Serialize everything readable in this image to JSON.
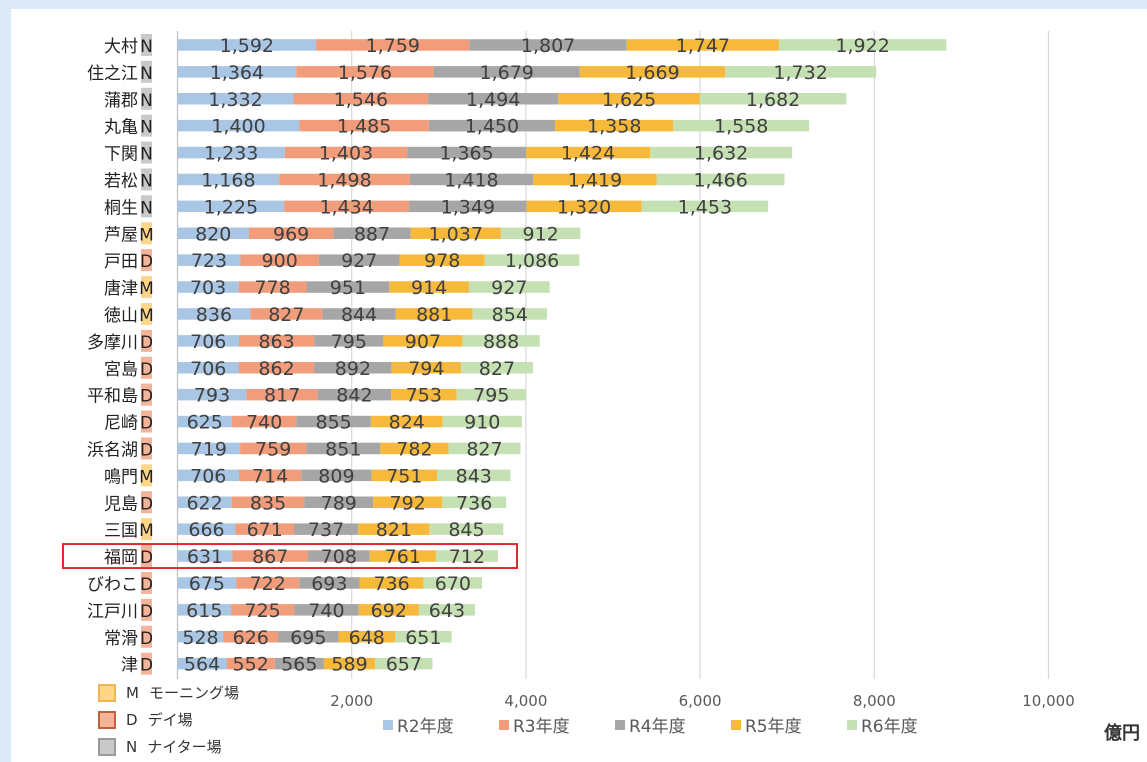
{
  "chart_data": {
    "type": "bar",
    "orientation": "horizontal",
    "stacked": true,
    "unit": "億円",
    "categories": [
      "大村",
      "住之江",
      "蒲郡",
      "丸亀",
      "下関",
      "若松",
      "桐生",
      "芦屋",
      "戸田",
      "唐津",
      "徳山",
      "多摩川",
      "宮島",
      "平和島",
      "尼崎",
      "浜名湖",
      "鳴門",
      "児島",
      "三国",
      "福岡",
      "びわこ",
      "江戸川",
      "常滑",
      "津"
    ],
    "category_types": [
      "N",
      "N",
      "N",
      "N",
      "N",
      "N",
      "N",
      "M",
      "D",
      "M",
      "M",
      "D",
      "D",
      "D",
      "D",
      "D",
      "M",
      "D",
      "M",
      "D",
      "D",
      "D",
      "D",
      "D"
    ],
    "highlighted_category": "福岡",
    "series": [
      {
        "name": "R2年度",
        "color": "#a9c6e5",
        "values": [
          1592,
          1364,
          1332,
          1400,
          1233,
          1168,
          1225,
          820,
          723,
          703,
          836,
          706,
          706,
          793,
          625,
          719,
          706,
          622,
          666,
          631,
          675,
          615,
          528,
          564
        ]
      },
      {
        "name": "R3年度",
        "color": "#f19c7a",
        "values": [
          1759,
          1576,
          1546,
          1485,
          1403,
          1498,
          1434,
          969,
          900,
          778,
          827,
          863,
          862,
          817,
          740,
          759,
          714,
          835,
          671,
          867,
          722,
          725,
          626,
          552
        ]
      },
      {
        "name": "R4年度",
        "color": "#a6a6a6",
        "values": [
          1807,
          1679,
          1494,
          1450,
          1365,
          1418,
          1349,
          887,
          927,
          951,
          844,
          795,
          892,
          842,
          855,
          851,
          809,
          789,
          737,
          708,
          693,
          740,
          695,
          565
        ]
      },
      {
        "name": "R5年度",
        "color": "#f6b93b",
        "values": [
          1747,
          1669,
          1625,
          1358,
          1424,
          1419,
          1320,
          1037,
          978,
          914,
          881,
          907,
          794,
          753,
          824,
          782,
          751,
          792,
          821,
          761,
          736,
          692,
          648,
          589
        ]
      },
      {
        "name": "R6年度",
        "color": "#c5e0b3",
        "values": [
          1922,
          1732,
          1682,
          1558,
          1632,
          1466,
          1453,
          912,
          1086,
          927,
          854,
          888,
          827,
          795,
          910,
          827,
          843,
          736,
          845,
          712,
          670,
          643,
          651,
          657
        ]
      }
    ],
    "xlim": [
      0,
      10000
    ],
    "xticks": [
      2000,
      4000,
      6000,
      8000,
      10000
    ],
    "xtick_labels": [
      "2,000",
      "4,000",
      "6,000",
      "8,000",
      "10,000"
    ],
    "grid": true,
    "legend": "bottom"
  },
  "type_legend": [
    {
      "key": "M",
      "label": "モーニング場",
      "fill": "#ffd588",
      "border": "#f0b450"
    },
    {
      "key": "D",
      "label": "デイ場",
      "fill": "#f3b49a",
      "border": "#c0603c"
    },
    {
      "key": "N",
      "label": "ナイター場",
      "fill": "#c9c9c9",
      "border": "#9a9a9a"
    }
  ],
  "unit_label": "億円"
}
